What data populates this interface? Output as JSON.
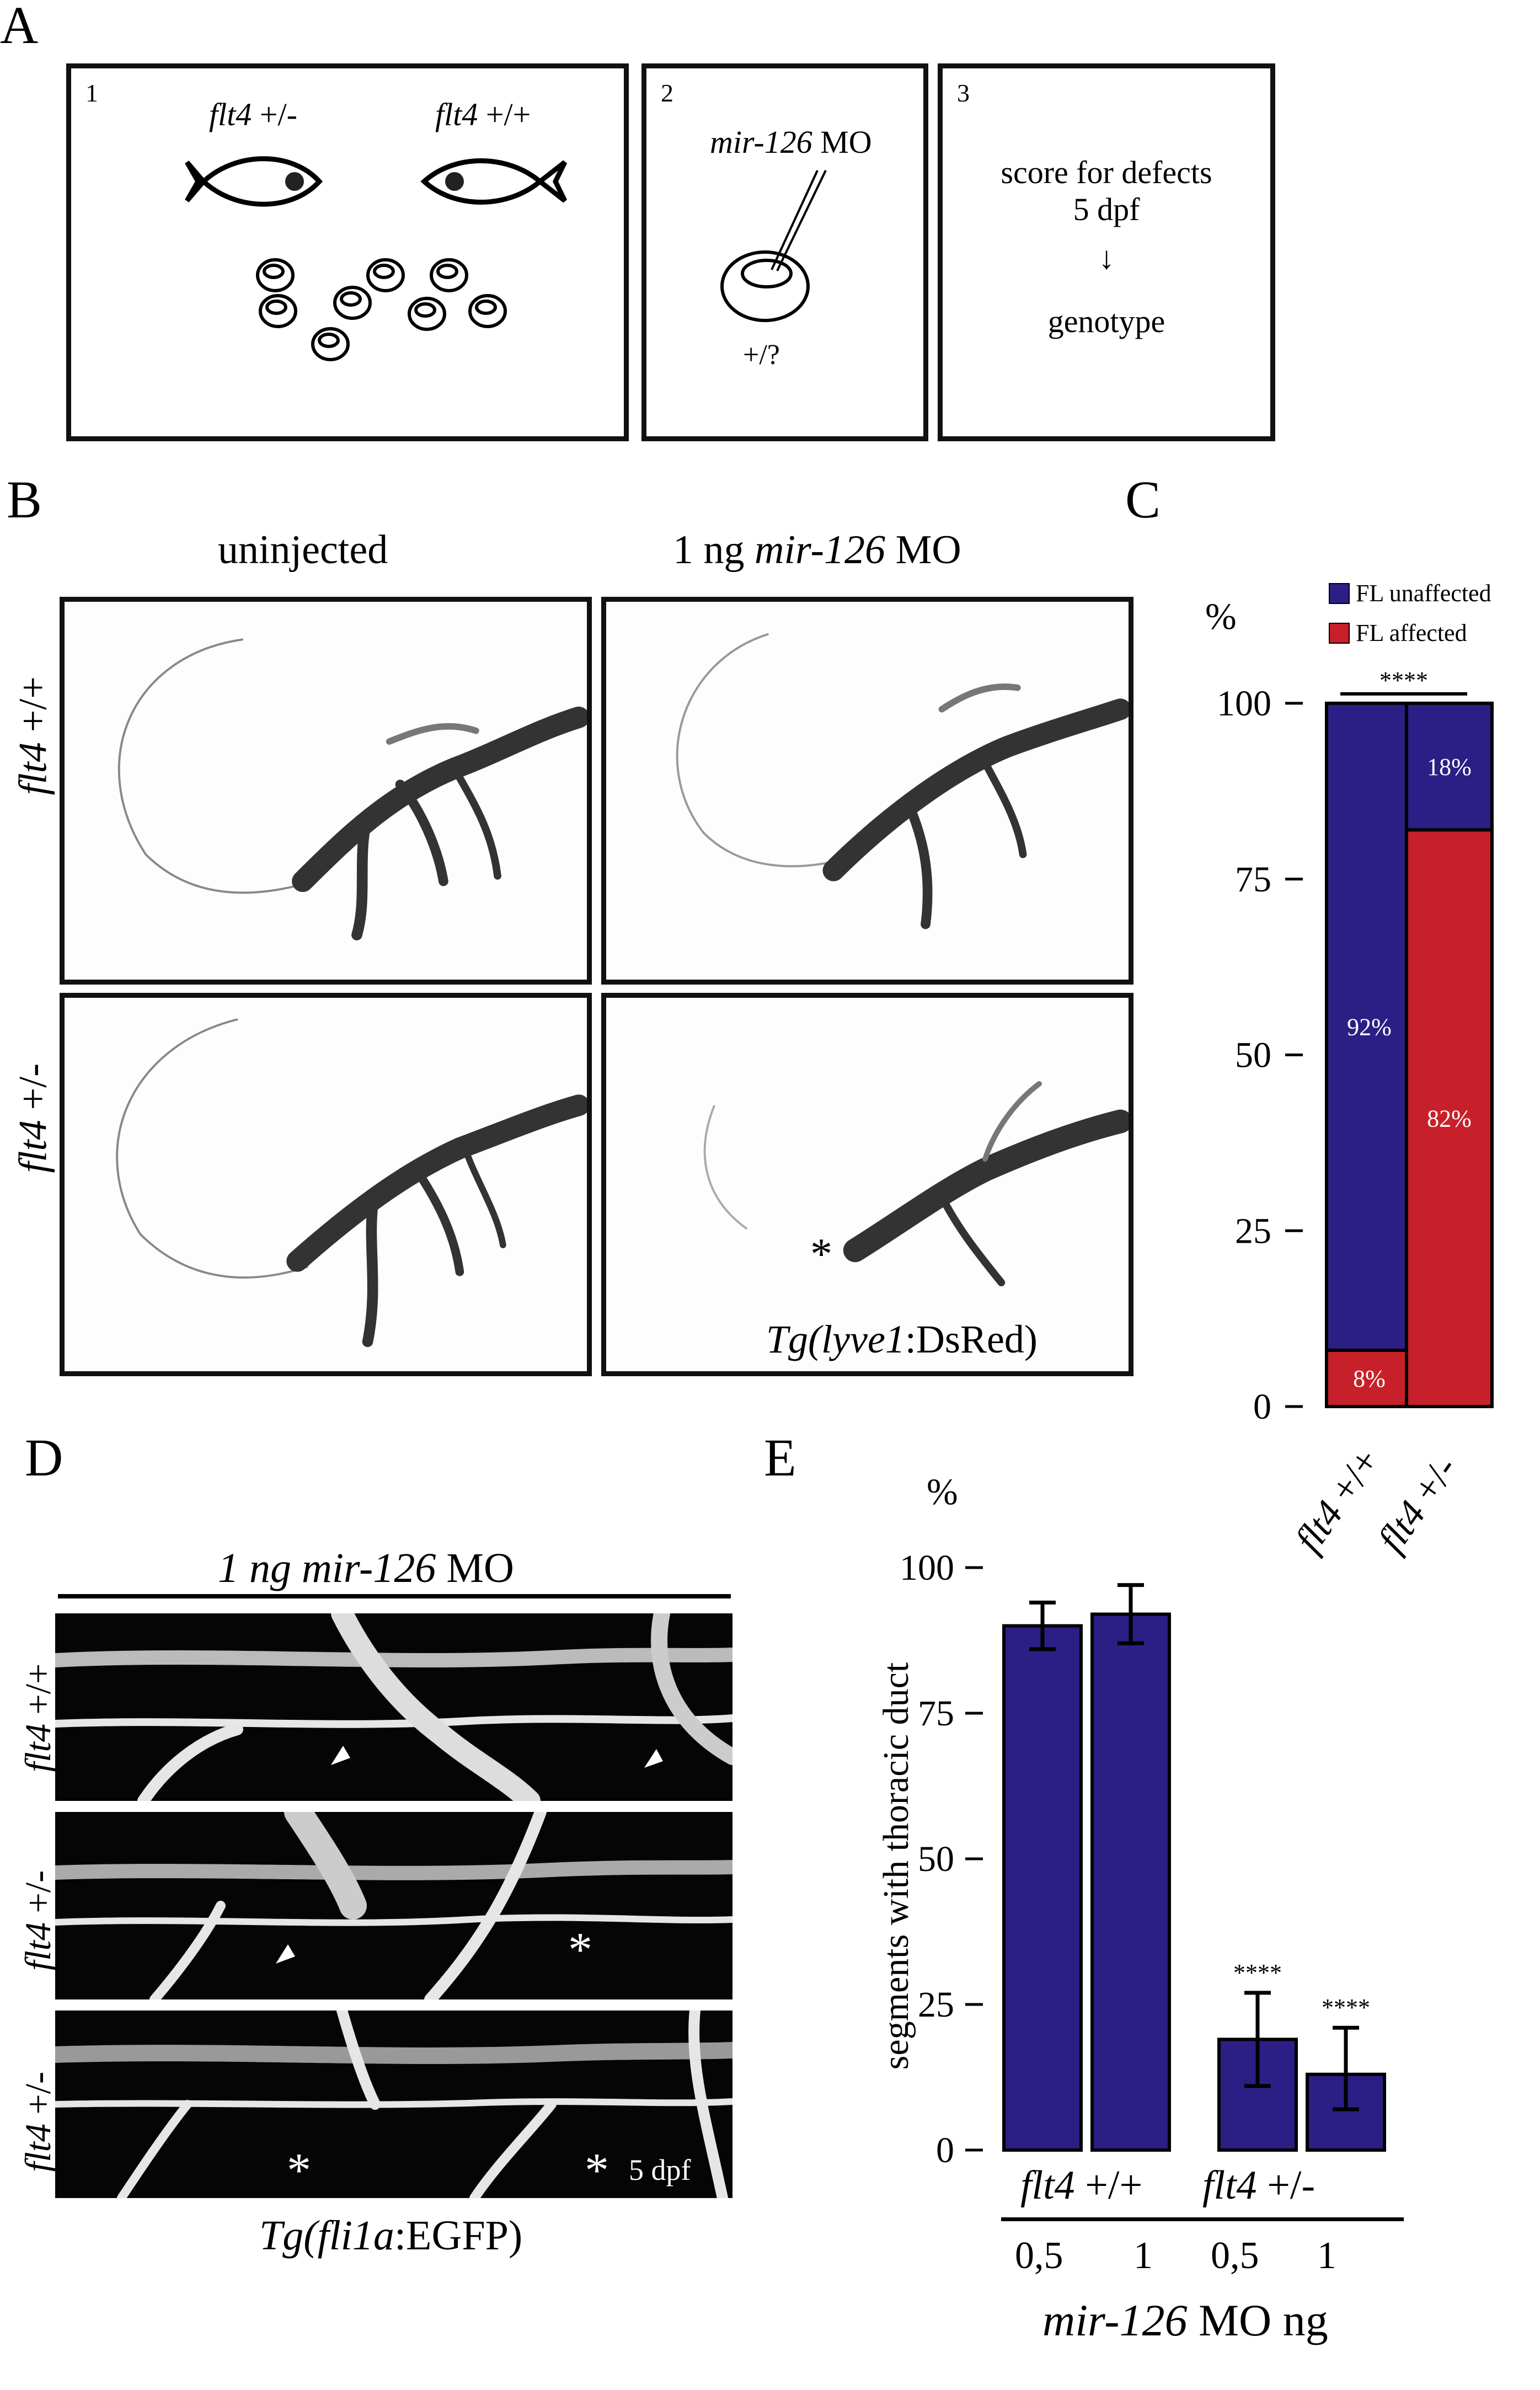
{
  "panelA": {
    "letter": "A",
    "box1": {
      "num": "1",
      "fish_left_label_gene": "flt4",
      "fish_left_label_geno": "+/-",
      "fish_right_label_gene": "flt4",
      "fish_right_label_geno": "+/+"
    },
    "box2": {
      "num": "2",
      "mo_gene": "mir-126",
      "mo_suffix": "MO",
      "egg_label": "+/?"
    },
    "box3": {
      "num": "3",
      "line1": "score for defects",
      "line2": "5 dpf",
      "arrow": "↓",
      "line3": "genotype"
    }
  },
  "panelB": {
    "letter": "B",
    "col1": "uninjected",
    "col2_prefix": "1 ng",
    "col2_gene": "mir-126",
    "col2_suffix": "MO",
    "row1_gene": "flt4",
    "row1_geno": "+/+",
    "row2_gene": "flt4",
    "row2_geno": "+/-",
    "asterisk": "*",
    "transgene_pre": "Tg(",
    "transgene_gene": "lyve1",
    "transgene_post": ":DsRed)"
  },
  "panelC": {
    "letter": "C",
    "legend": [
      "FL unaffected",
      "FL affected"
    ],
    "significance": "****",
    "bar_labels": [
      "92%",
      "8%",
      "18%",
      "82%"
    ],
    "xlabels": [
      {
        "gene": "flt4",
        "geno": "+/+"
      },
      {
        "gene": "flt4",
        "geno": "+/-"
      }
    ]
  },
  "panelD": {
    "letter": "D",
    "header_prefix": "1 ng",
    "header_gene": "mir-126",
    "header_suffix": "MO",
    "rows": [
      {
        "gene": "flt4",
        "geno": "+/+"
      },
      {
        "gene": "flt4",
        "geno": "+/-"
      },
      {
        "gene": "flt4",
        "geno": "+/-"
      }
    ],
    "asterisk": "*",
    "dpf": "5 dpf",
    "transgene_pre": "Tg(",
    "transgene_gene": "fli1a",
    "transgene_post": ":EGFP)"
  },
  "panelE": {
    "letter": "E",
    "group1_gene": "flt4",
    "group1_geno": "+/+",
    "group2_gene": "flt4",
    "group2_geno": "+/-",
    "dose_labels": [
      "0,5",
      "1",
      "0,5",
      "1"
    ],
    "xlabel_gene": "mir-126",
    "xlabel_suffix": "MO ng",
    "significance": [
      "****",
      "****"
    ]
  },
  "colors": {
    "unaffected": "#2b1f86",
    "affected": "#c8202a",
    "bar": "#2b1f86"
  },
  "chart_data": [
    {
      "type": "bar",
      "panel": "C",
      "stacked": true,
      "categories": [
        "flt4 +/+",
        "flt4 +/-"
      ],
      "series": [
        {
          "name": "FL affected",
          "values": [
            8,
            82
          ]
        },
        {
          "name": "FL unaffected",
          "values": [
            92,
            18
          ]
        }
      ],
      "title": "",
      "xlabel": "",
      "ylabel": "%",
      "ylim": [
        0,
        100
      ],
      "yticks": [
        0,
        25,
        50,
        75,
        100
      ],
      "legend": "top"
    },
    {
      "type": "bar",
      "panel": "E",
      "categories": [
        "0,5",
        "1",
        "0,5",
        "1"
      ],
      "groups": [
        "flt4 +/+",
        "flt4 +/-"
      ],
      "values": [
        90,
        92,
        19,
        13
      ],
      "errors": [
        [
          86,
          94
        ],
        [
          87,
          97
        ],
        [
          11,
          27
        ],
        [
          7,
          21
        ]
      ],
      "title": "",
      "xlabel": "mir-126 MO ng",
      "ylabel": "segments with thoracic duct",
      "yunit": "%",
      "ylim": [
        0,
        100
      ],
      "yticks": [
        0,
        25,
        50,
        75,
        100
      ]
    }
  ]
}
